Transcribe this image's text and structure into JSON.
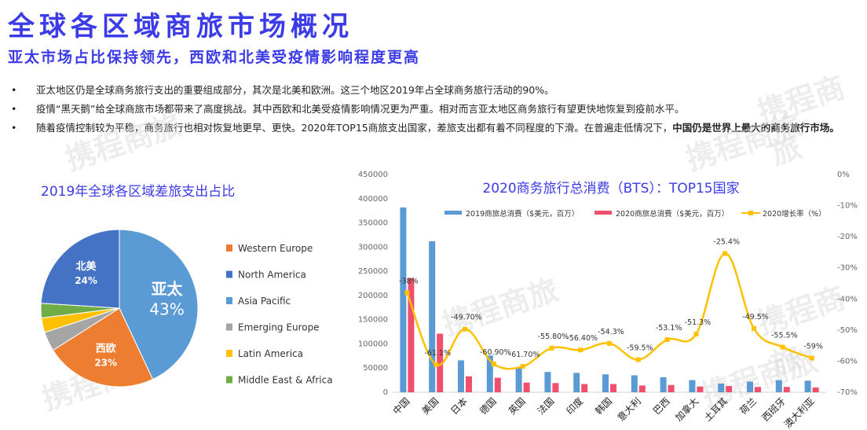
{
  "header": {
    "title": "全球各区域商旅市场概况",
    "subtitle": "亚太市场占比保持领先，西欧和北美受疫情影响程度更高"
  },
  "bullets": [
    {
      "text": "亚太地区仍是全球商务旅行支出的重要组成部分，其次是北美和欧洲。这三个地区2019年占全球商务旅行活动的90%。",
      "bold": ""
    },
    {
      "text": "疫情“黑天鹅”给全球商旅市场都带来了高度挑战。其中西欧和北美受疫情影响情况更为严重。相对而言亚太地区商务旅行有望更快地恢复到疫前水平。",
      "bold": ""
    },
    {
      "text": "随着疫情控制较为平稳，商务旅行也相对恢复地更早、更快。2020年TOP15商旅支出国家，差旅支出都有着不同程度的下滑。在普遍走低情况下，",
      "bold": "中国仍是世界上最大的商务旅行市场。"
    }
  ],
  "bullet_symbol": "•",
  "watermark_text": "携程商旅",
  "colors": {
    "brand_blue": "#3b3be8",
    "western_europe": "#ed7d31",
    "north_america": "#4472c4",
    "asia_pacific": "#5b9bd5",
    "emerging_europe": "#a5a5a5",
    "latin_america": "#ffc000",
    "middle_east_africa": "#70ad47",
    "bar_2019": "#5b9bd5",
    "bar_2020": "#f0506e",
    "line_growth": "#ffc000"
  },
  "chart_data": [
    {
      "type": "pie",
      "title": "2019年全球各区域差旅支出占比",
      "slices": [
        {
          "name": "Asia Pacific",
          "label": "亚太",
          "pct_label": "43%",
          "value": 43,
          "color": "#5b9bd5"
        },
        {
          "name": "Western Europe",
          "label": "西欧",
          "pct_label": "23%",
          "value": 23,
          "color": "#ed7d31"
        },
        {
          "name": "Emerging Europe",
          "label": "",
          "pct_label": "",
          "value": 4,
          "color": "#a5a5a5"
        },
        {
          "name": "Latin America",
          "label": "",
          "pct_label": "",
          "value": 3,
          "color": "#ffc000"
        },
        {
          "name": "Middle East & Africa",
          "label": "",
          "pct_label": "",
          "value": 3,
          "color": "#70ad47"
        },
        {
          "name": "North America",
          "label": "北美",
          "pct_label": "24%",
          "value": 24,
          "color": "#4472c4"
        }
      ],
      "legend": [
        "Western Europe",
        "North America",
        "Asia Pacific",
        "Emerging Europe",
        "Latin America",
        "Middle East & Africa"
      ],
      "legend_colors": [
        "#ed7d31",
        "#4472c4",
        "#5b9bd5",
        "#a5a5a5",
        "#ffc000",
        "#70ad47"
      ],
      "legend_position": "right"
    },
    {
      "type": "bar",
      "title": "2020商务旅行总消费（BTS）：TOP15国家",
      "categories": [
        "中国",
        "美国",
        "日本",
        "德国",
        "英国",
        "法国",
        "印度",
        "韩国",
        "意大利",
        "巴西",
        "加拿大",
        "土耳其",
        "荷兰",
        "西班牙",
        "澳大利亚"
      ],
      "series": [
        {
          "name": "2019商旅总消费（$美元，百万）",
          "type": "bar",
          "axis": "left",
          "color": "#5b9bd5",
          "values": [
            382000,
            312000,
            66000,
            76000,
            51000,
            42000,
            40000,
            37000,
            35000,
            31000,
            25000,
            18000,
            22000,
            25000,
            24000
          ]
        },
        {
          "name": "2020商旅总消费（$美元，百万）",
          "type": "bar",
          "axis": "left",
          "color": "#f0506e",
          "values": [
            236000,
            121000,
            33000,
            30000,
            20000,
            19000,
            17000,
            17000,
            14000,
            15000,
            12000,
            13000,
            11000,
            11000,
            10000
          ]
        },
        {
          "name": "2020增长率（%）",
          "type": "line",
          "axis": "right",
          "color": "#ffc000",
          "values": [
            -38,
            -61.1,
            -49.7,
            -60.9,
            -61.7,
            -55.8,
            -56.4,
            -54.3,
            -59.5,
            -53.1,
            -51.3,
            -25.4,
            -49.5,
            -55.5,
            -59
          ],
          "labels": [
            "-38%",
            "-61.1%",
            "-49.70%",
            "-60.90%",
            "-61.70%",
            "-55.80%",
            "-56.40%",
            "-54.3%",
            "-59.5%",
            "-53.1%",
            "-51.3%",
            "-25.4%",
            "-49.5%",
            "-55.5%",
            "-59%"
          ]
        }
      ],
      "ylim_left": [
        0,
        450000
      ],
      "yticks_left": [
        "0",
        "50000",
        "100000",
        "150000",
        "200000",
        "250000",
        "300000",
        "350000",
        "400000",
        "450000"
      ],
      "ylim_right": [
        -70,
        0
      ],
      "yticks_right": [
        "0%",
        "-10%",
        "-20%",
        "-30%",
        "-40%",
        "-50%",
        "-60%",
        "-70%"
      ],
      "legend_position": "top",
      "grid": false
    }
  ]
}
